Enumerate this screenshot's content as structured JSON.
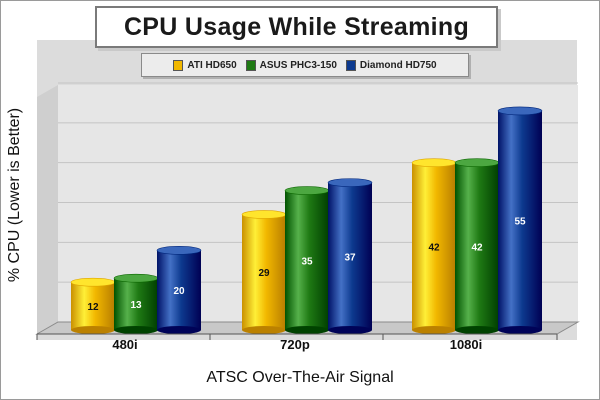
{
  "colors": {
    "ati": "#f2b800",
    "asus": "#1f7a14",
    "diamond": "#0d3a8f"
  },
  "chart_data": {
    "type": "bar",
    "title": "CPU Usage While Streaming",
    "xlabel": "ATSC Over-The-Air Signal",
    "ylabel": "% CPU (Lower is Better)",
    "categories": [
      "480i",
      "720p",
      "1080i"
    ],
    "series": [
      {
        "name": "ATI HD650",
        "values": [
          12,
          29,
          42
        ]
      },
      {
        "name": "ASUS PHC3-150",
        "values": [
          13,
          35,
          42
        ]
      },
      {
        "name": "Diamond HD750",
        "values": [
          20,
          37,
          55
        ]
      }
    ],
    "ylim": [
      0,
      60
    ],
    "grid": true,
    "legend": "top"
  }
}
